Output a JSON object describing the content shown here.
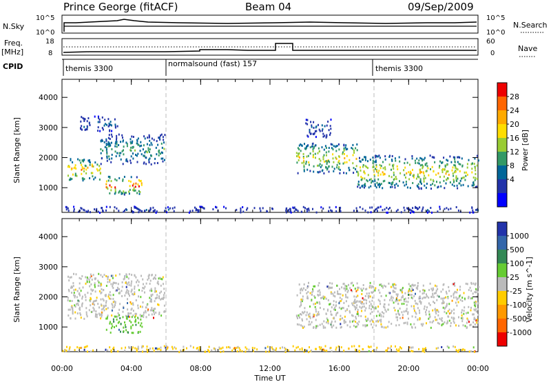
{
  "header": {
    "station": "Prince George (fitACF)",
    "beam": "Beam 04",
    "date": "09/Sep/2009"
  },
  "strip": {
    "left_labels": [
      "N.Sky",
      "Freq.",
      "[MHz]",
      "CPID"
    ],
    "right_labels": [
      "N.Search",
      "Nave"
    ],
    "nsky_ticks_left": [
      "10^5",
      "10^0"
    ],
    "nsky_ticks_right": [
      "10^5",
      "10^0"
    ],
    "freq_ticks_left": [
      "18",
      "8"
    ],
    "nave_ticks_right": [
      "60",
      "0"
    ],
    "cpid": [
      {
        "label": "themis 3300",
        "start_hour": 0
      },
      {
        "label": "normalsound (fast) 157",
        "start_hour": 6
      },
      {
        "label": "themis 3300",
        "start_hour": 18
      }
    ]
  },
  "chart_data": [
    {
      "type": "heatmap",
      "name": "power",
      "ylabel": "Slant Range [km]",
      "xlim": [
        0,
        24
      ],
      "ylim": [
        180,
        4600
      ],
      "yticks": [
        1000,
        2000,
        3000,
        4000
      ],
      "colorbar": {
        "label": "Power [dB]",
        "ticks": [
          "28",
          "24",
          "20",
          "16",
          "12",
          "8",
          "4"
        ],
        "colors": [
          "#ee0000",
          "#ff6600",
          "#ffaa00",
          "#ffdd00",
          "#99cc33",
          "#339966",
          "#006699",
          "#2233aa",
          "#0000ff"
        ]
      },
      "regions": [
        {
          "t0": 0.3,
          "t1": 2.2,
          "r0": 1250,
          "r1": 2000,
          "peak_db": 26
        },
        {
          "t0": 2.2,
          "t1": 5.9,
          "r0": 1800,
          "r1": 2800,
          "peak_db": 14
        },
        {
          "t0": 2.5,
          "t1": 4.6,
          "r0": 800,
          "r1": 1400,
          "peak_db": 30
        },
        {
          "t0": 1.0,
          "t1": 3.2,
          "r0": 2900,
          "r1": 3400,
          "peak_db": 8
        },
        {
          "t0": 13.5,
          "t1": 17.0,
          "r0": 1500,
          "r1": 2500,
          "peak_db": 22
        },
        {
          "t0": 17.0,
          "t1": 24.0,
          "r0": 1000,
          "r1": 2100,
          "peak_db": 22
        },
        {
          "t0": 14.0,
          "t1": 15.5,
          "r0": 2700,
          "r1": 3300,
          "peak_db": 8
        },
        {
          "t0": 0.0,
          "t1": 24.0,
          "r0": 200,
          "r1": 400,
          "peak_db": 6
        }
      ]
    },
    {
      "type": "heatmap",
      "name": "velocity",
      "ylabel": "Slant Range [km]",
      "xlabel": "Time UT",
      "xlim": [
        0,
        24
      ],
      "ylim": [
        180,
        4600
      ],
      "yticks": [
        1000,
        2000,
        3000,
        4000
      ],
      "xticks": [
        "00:00",
        "04:00",
        "08:00",
        "12:00",
        "16:00",
        "20:00",
        "00:00"
      ],
      "colorbar": {
        "label": "Velocity [m s^-1]",
        "ticks": [
          "1000",
          "500",
          "100",
          "25",
          "-25",
          "-100",
          "-500",
          "-1000"
        ],
        "colors": [
          "#2233aa",
          "#3366aa",
          "#338855",
          "#66cc33",
          "#bbbbbb",
          "#ffcc00",
          "#ff9900",
          "#ff6600",
          "#ee0000"
        ]
      },
      "regions": [
        {
          "t0": 0.3,
          "t1": 5.9,
          "r0": 1300,
          "r1": 2800,
          "velocity": 0
        },
        {
          "t0": 2.5,
          "t1": 4.6,
          "r0": 800,
          "r1": 1400,
          "velocity": 80
        },
        {
          "t0": 13.5,
          "t1": 24.0,
          "r0": 1000,
          "r1": 2500,
          "velocity": 0
        },
        {
          "t0": 0.0,
          "t1": 24.0,
          "r0": 200,
          "r1": 400,
          "velocity": -40
        }
      ]
    }
  ]
}
